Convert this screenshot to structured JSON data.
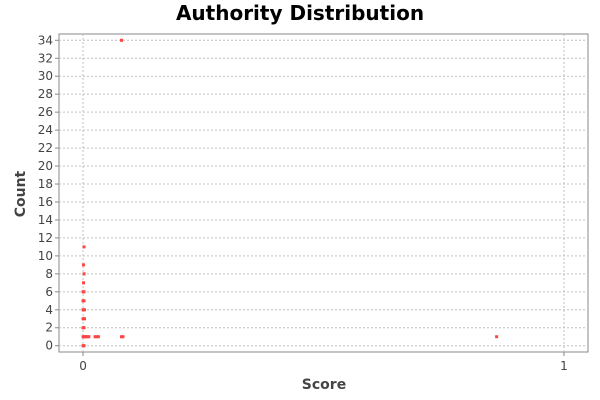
{
  "chart_data": {
    "type": "scatter",
    "title": "Authority Distribution",
    "xlabel": "Score",
    "ylabel": "Count",
    "xlim": [
      -0.05,
      1.05
    ],
    "ylim": [
      -0.7,
      34.7
    ],
    "x_ticks": [
      0,
      1
    ],
    "y_ticks": [
      0,
      2,
      4,
      6,
      8,
      10,
      12,
      14,
      16,
      18,
      20,
      22,
      24,
      26,
      28,
      30,
      32,
      34
    ],
    "grid": true,
    "legend": "none",
    "series": [
      {
        "color": "#ff4444",
        "points": [
          {
            "x": 0.08,
            "y": 34
          },
          {
            "x": 0.002,
            "y": 11
          },
          {
            "x": 0.001,
            "y": 9
          },
          {
            "x": 0.002,
            "y": 8
          },
          {
            "x": 0.001,
            "y": 7
          },
          {
            "x": 0.0,
            "y": 6
          },
          {
            "x": 0.002,
            "y": 6
          },
          {
            "x": 0.0,
            "y": 5
          },
          {
            "x": 0.002,
            "y": 5
          },
          {
            "x": 0.0,
            "y": 4
          },
          {
            "x": 0.001,
            "y": 4
          },
          {
            "x": 0.003,
            "y": 4
          },
          {
            "x": 0.0,
            "y": 3
          },
          {
            "x": 0.001,
            "y": 3
          },
          {
            "x": 0.003,
            "y": 3
          },
          {
            "x": 0.0,
            "y": 2
          },
          {
            "x": 0.002,
            "y": 2
          },
          {
            "x": 0.0,
            "y": 1
          },
          {
            "x": 0.002,
            "y": 1
          },
          {
            "x": 0.004,
            "y": 1
          },
          {
            "x": 0.006,
            "y": 1
          },
          {
            "x": 0.009,
            "y": 1
          },
          {
            "x": 0.012,
            "y": 1
          },
          {
            "x": 0.025,
            "y": 1
          },
          {
            "x": 0.028,
            "y": 1
          },
          {
            "x": 0.032,
            "y": 1
          },
          {
            "x": 0.08,
            "y": 1
          },
          {
            "x": 0.083,
            "y": 1
          },
          {
            "x": 0.86,
            "y": 1
          },
          {
            "x": 0.0,
            "y": 0
          },
          {
            "x": 0.002,
            "y": 0
          }
        ]
      }
    ]
  }
}
